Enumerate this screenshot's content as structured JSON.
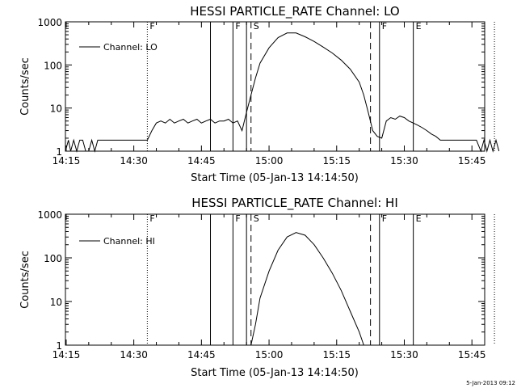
{
  "chart_data": [
    {
      "type": "line",
      "title": "HESSI PARTICLE_RATE Channel: LO",
      "xlabel": "Start Time (05-Jan-13 14:14:50)",
      "ylabel": "Counts/sec",
      "yscale": "log",
      "ylim": [
        1,
        1000
      ],
      "xlim_minutes_after_14_14_50": [
        0,
        93
      ],
      "xticks": [
        "14:15",
        "14:30",
        "14:45",
        "15:00",
        "15:15",
        "15:30",
        "15:45"
      ],
      "yticks": [
        "1",
        "10",
        "100",
        "1000"
      ],
      "grid": false,
      "legend": "top-left",
      "series": [
        {
          "name": "Channel: LO",
          "points": [
            [
              "14:14:50",
              1.0
            ],
            [
              "14:15:30",
              1.8
            ],
            [
              "14:16:00",
              1.0
            ],
            [
              "14:16:40",
              1.8
            ],
            [
              "14:17:20",
              1.0
            ],
            [
              "14:18:00",
              1.8
            ],
            [
              "14:18:40",
              1.8
            ],
            [
              "14:19:20",
              1.0
            ],
            [
              "14:20:00",
              1.0
            ],
            [
              "14:20:40",
              1.8
            ],
            [
              "14:21:20",
              1.0
            ],
            [
              "14:22:00",
              1.8
            ],
            [
              "14:24:00",
              1.8
            ],
            [
              "14:28:00",
              1.8
            ],
            [
              "14:32:00",
              1.8
            ],
            [
              "14:33:00",
              1.8
            ],
            [
              "14:34:00",
              3.0
            ],
            [
              "14:35:00",
              4.5
            ],
            [
              "14:36:00",
              5.0
            ],
            [
              "14:37:00",
              4.5
            ],
            [
              "14:38:00",
              5.5
            ],
            [
              "14:39:00",
              4.5
            ],
            [
              "14:40:00",
              5.0
            ],
            [
              "14:41:00",
              5.5
            ],
            [
              "14:42:00",
              4.5
            ],
            [
              "14:43:00",
              5.0
            ],
            [
              "14:44:00",
              5.5
            ],
            [
              "14:45:00",
              4.5
            ],
            [
              "14:46:00",
              5.0
            ],
            [
              "14:47:00",
              5.5
            ],
            [
              "14:48:00",
              4.5
            ],
            [
              "14:49:00",
              5.0
            ],
            [
              "14:50:00",
              5.0
            ],
            [
              "14:51:00",
              5.5
            ],
            [
              "14:52:00",
              4.5
            ],
            [
              "14:53:00",
              5.0
            ],
            [
              "14:54:00",
              3.0
            ],
            [
              "14:55:00",
              8
            ],
            [
              "14:56:00",
              20
            ],
            [
              "14:57:00",
              50
            ],
            [
              "14:58:00",
              110
            ],
            [
              "15:00:00",
              250
            ],
            [
              "15:02:00",
              430
            ],
            [
              "15:04:00",
              550
            ],
            [
              "15:06:00",
              550
            ],
            [
              "15:08:00",
              450
            ],
            [
              "15:10:00",
              350
            ],
            [
              "15:12:00",
              260
            ],
            [
              "15:14:00",
              190
            ],
            [
              "15:16:00",
              130
            ],
            [
              "15:18:00",
              80
            ],
            [
              "15:20:00",
              40
            ],
            [
              "15:21:00",
              20
            ],
            [
              "15:22:00",
              8
            ],
            [
              "15:23:00",
              3
            ],
            [
              "15:24:00",
              2.2
            ],
            [
              "15:25:00",
              2.0
            ],
            [
              "15:26:00",
              5.0
            ],
            [
              "15:27:00",
              6.0
            ],
            [
              "15:28:00",
              5.5
            ],
            [
              "15:29:00",
              6.5
            ],
            [
              "15:30:00",
              6.0
            ],
            [
              "15:31:00",
              5.0
            ],
            [
              "15:32:00",
              4.5
            ],
            [
              "15:33:00",
              4.0
            ],
            [
              "15:34:00",
              3.5
            ],
            [
              "15:35:00",
              3.0
            ],
            [
              "15:36:00",
              2.5
            ],
            [
              "15:37:00",
              2.2
            ],
            [
              "15:38:00",
              1.8
            ],
            [
              "15:42:00",
              1.8
            ],
            [
              "15:46:00",
              1.8
            ],
            [
              "15:47:00",
              1.0
            ],
            [
              "15:47:40",
              1.8
            ],
            [
              "15:48:20",
              1.0
            ],
            [
              "15:49:00",
              1.8
            ],
            [
              "15:49:40",
              1.0
            ],
            [
              "15:50:20",
              1.8
            ],
            [
              "15:51:00",
              1.0
            ]
          ]
        }
      ]
    },
    {
      "type": "line",
      "title": "HESSI PARTICLE_RATE Channel: HI",
      "xlabel": "Start Time (05-Jan-13 14:14:50)",
      "ylabel": "Counts/sec",
      "yscale": "log",
      "ylim": [
        1,
        1000
      ],
      "xlim_minutes_after_14_14_50": [
        0,
        93
      ],
      "xticks": [
        "14:15",
        "14:30",
        "14:45",
        "15:00",
        "15:15",
        "15:30",
        "15:45"
      ],
      "yticks": [
        "1",
        "10",
        "100",
        "1000"
      ],
      "grid": false,
      "legend": "top-left",
      "series": [
        {
          "name": "Channel: HI",
          "points": [
            [
              "14:56:00",
              1.0
            ],
            [
              "14:57:00",
              3
            ],
            [
              "14:58:00",
              12
            ],
            [
              "15:00:00",
              50
            ],
            [
              "15:02:00",
              150
            ],
            [
              "15:04:00",
              300
            ],
            [
              "15:06:00",
              380
            ],
            [
              "15:08:00",
              330
            ],
            [
              "15:10:00",
              200
            ],
            [
              "15:12:00",
              100
            ],
            [
              "15:14:00",
              45
            ],
            [
              "15:16:00",
              18
            ],
            [
              "15:18:00",
              6
            ],
            [
              "15:20:00",
              2
            ],
            [
              "15:21:00",
              1.0
            ]
          ]
        }
      ]
    }
  ],
  "flags": {
    "top": [
      {
        "time": "14:33:00",
        "style": "dotted",
        "label": "F"
      },
      {
        "time": "14:47:00",
        "style": "solid",
        "label": ""
      },
      {
        "time": "14:52:00",
        "style": "solid",
        "label": "F"
      },
      {
        "time": "14:55:00",
        "style": "solid",
        "label": ""
      },
      {
        "time": "14:56:00",
        "style": "dashed",
        "label": "S"
      },
      {
        "time": "15:22:30",
        "style": "dashed",
        "label": ""
      },
      {
        "time": "15:24:30",
        "style": "solid",
        "label": "F"
      },
      {
        "time": "15:32:00",
        "style": "solid",
        "label": "E"
      },
      {
        "time": "15:50:00",
        "style": "dotted",
        "label": ""
      }
    ],
    "bottom": [
      {
        "time": "14:33:00",
        "style": "dotted",
        "label": "F"
      },
      {
        "time": "14:47:00",
        "style": "solid",
        "label": ""
      },
      {
        "time": "14:52:00",
        "style": "solid",
        "label": "F"
      },
      {
        "time": "14:55:00",
        "style": "solid",
        "label": ""
      },
      {
        "time": "14:56:00",
        "style": "dashed",
        "label": "S"
      },
      {
        "time": "15:22:30",
        "style": "dashed",
        "label": ""
      },
      {
        "time": "15:24:30",
        "style": "solid",
        "label": "F"
      },
      {
        "time": "15:32:00",
        "style": "solid",
        "label": "E"
      },
      {
        "time": "15:50:00",
        "style": "dotted",
        "label": ""
      }
    ]
  },
  "timestamp": "5-Jan-2013 09:12",
  "colors": {
    "line": "#000000",
    "background": "#ffffff"
  }
}
